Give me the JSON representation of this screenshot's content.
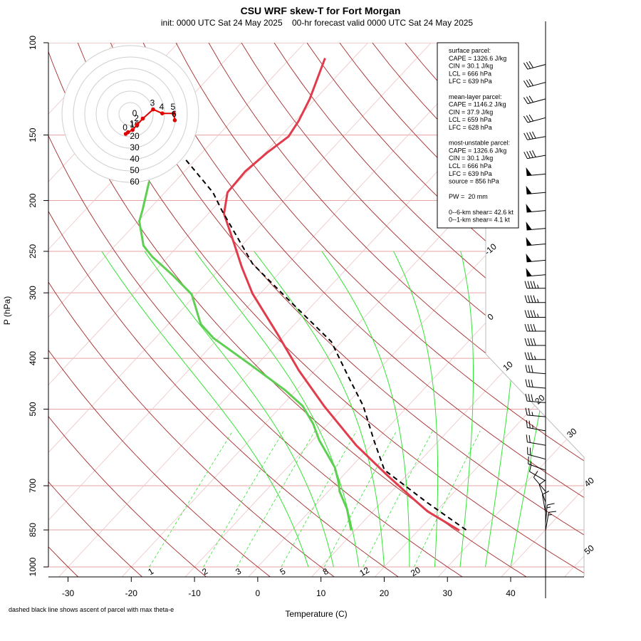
{
  "chart_data": {
    "type": "skewt",
    "title": "CSU WRF skew-T for Fort Morgan",
    "subtitle": "init: 0000 UTC Sat 24 May 2025    00-hr forecast valid 0000 UTC Sat 24 May 2025",
    "x_label": "Temperature (C)",
    "y_label": "P (hPa)",
    "xlim": [
      -33.1,
      51.6
    ],
    "ylim": [
      1000,
      100
    ],
    "log_y": true,
    "xticks": [
      -30,
      -20,
      -10,
      0,
      10,
      20,
      30,
      40
    ],
    "yticks": [
      100,
      150,
      200,
      250,
      300,
      400,
      500,
      700,
      850,
      1000
    ],
    "isotherms": [
      -100,
      -90,
      -80,
      -70,
      -60,
      -50,
      -40,
      -30,
      -20,
      -10,
      0,
      10,
      20,
      30,
      40,
      50
    ],
    "isotherm_labels": [
      -10,
      0,
      10,
      20,
      30,
      40,
      50
    ],
    "dry_adiabats": [
      -40,
      -30,
      -20,
      -10,
      0,
      10,
      20,
      30,
      40,
      50,
      60,
      70,
      80,
      90,
      100,
      110,
      120,
      130,
      140,
      150,
      160,
      170,
      180
    ],
    "moist_adiabats": [
      8,
      12,
      16,
      20,
      24,
      28,
      32,
      36,
      40
    ],
    "mixing_ratios": [
      1,
      2,
      3,
      5,
      8,
      12,
      20
    ],
    "traces": [
      {
        "color": "#e03c4c",
        "dash": false,
        "pressure": [
          852,
          783,
          741,
          670,
          586,
          493,
          422,
          360,
          301,
          268,
          240,
          212,
          193,
          176,
          162,
          151,
          141,
          128,
          107
        ],
        "values": [
          26.5,
          18.6,
          14.5,
          7.1,
          -2.4,
          -13.3,
          -22.5,
          -31.2,
          -41.2,
          -46.8,
          -51.8,
          -57.5,
          -60.1,
          -60.4,
          -59.7,
          -58.7,
          -59.4,
          -60.9,
          -64.5
        ]
      },
      {
        "color": "#5ecf52",
        "dash": false,
        "pressure": [
          852,
          776,
          718,
          688,
          646,
          573,
          533,
          493,
          460,
          409,
          366,
          344,
          302,
          277,
          256,
          244,
          219,
          208,
          184
        ],
        "values": [
          9.4,
          5.6,
          1.8,
          0.2,
          -2.5,
          -9.0,
          -12.4,
          -16.7,
          -21.8,
          -31.5,
          -40.8,
          -44.9,
          -50.7,
          -56.7,
          -62.5,
          -65.5,
          -69.8,
          -71.0,
          -74.1
        ]
      },
      {
        "color": "#000000",
        "dash": true,
        "pressure": [
          850,
          753,
          653,
          575,
          493,
          435,
          372,
          344,
          304,
          264,
          209,
          193,
          167
        ],
        "values": [
          27.5,
          17.2,
          5.7,
          -0.2,
          -7.1,
          -13.6,
          -21.6,
          -27.1,
          -35.8,
          -45.6,
          -58.3,
          -62.4,
          -71.6
        ]
      }
    ],
    "winds": {
      "pressure": [
        110,
        119,
        128,
        139,
        151,
        164,
        178,
        193,
        209,
        226,
        242,
        260,
        277,
        294,
        313,
        334,
        355,
        378,
        402,
        428,
        456,
        486,
        517,
        550,
        586,
        623,
        654,
        685,
        718,
        752,
        788,
        826,
        852
      ],
      "direction": [
        255,
        255,
        255,
        255,
        260,
        260,
        265,
        265,
        265,
        265,
        265,
        265,
        265,
        270,
        270,
        270,
        270,
        270,
        270,
        275,
        275,
        275,
        275,
        280,
        280,
        285,
        290,
        300,
        320,
        340,
        350,
        5,
        10
      ],
      "speed": [
        30,
        30,
        30,
        30,
        40,
        40,
        50,
        50,
        50,
        50,
        50,
        50,
        50,
        45,
        45,
        45,
        40,
        40,
        35,
        30,
        30,
        30,
        25,
        25,
        20,
        20,
        15,
        10,
        10,
        10,
        10,
        15,
        15
      ]
    },
    "hodograph": {
      "rings": [
        0,
        10,
        20,
        30,
        40,
        50,
        60
      ],
      "u": [
        -4,
        -2,
        2,
        6,
        11,
        20,
        28,
        38,
        39
      ],
      "v": [
        -17.5,
        -16,
        -14,
        -9.5,
        -4,
        4,
        0.5,
        0.5,
        -5.5
      ],
      "labels": [
        "0",
        null,
        "1",
        "2",
        null,
        "3",
        "4",
        "5",
        "6"
      ],
      "color": "#e00000"
    },
    "info_box": [
      [
        "surface parcel:",
        "CAPE = 1326.6 J/kg",
        "CIN = 30.1 J/kg",
        "LCL = 666 hPa",
        "LFC = 639 hPa"
      ],
      [
        "mean-layer parcel:",
        "CAPE = 1146.2 J/kg",
        "CIN = 37.9 J/kg",
        "LCL = 659 hPa",
        "LFC = 628 hPa"
      ],
      [
        "most-unstable parcel:",
        "CAPE = 1326.6 J/kg",
        "CIN = 30.1 J/kg",
        "LCL = 666 hPa",
        "LFC = 639 hPa",
        "source = 856 hPa"
      ],
      [
        "PW =  20 mm"
      ],
      [
        "0--6-km shear= 42.6 kt",
        "0--1-km shear= 4.1 kt"
      ]
    ],
    "note": "dashed black line shows ascent of parcel with max theta-e"
  }
}
